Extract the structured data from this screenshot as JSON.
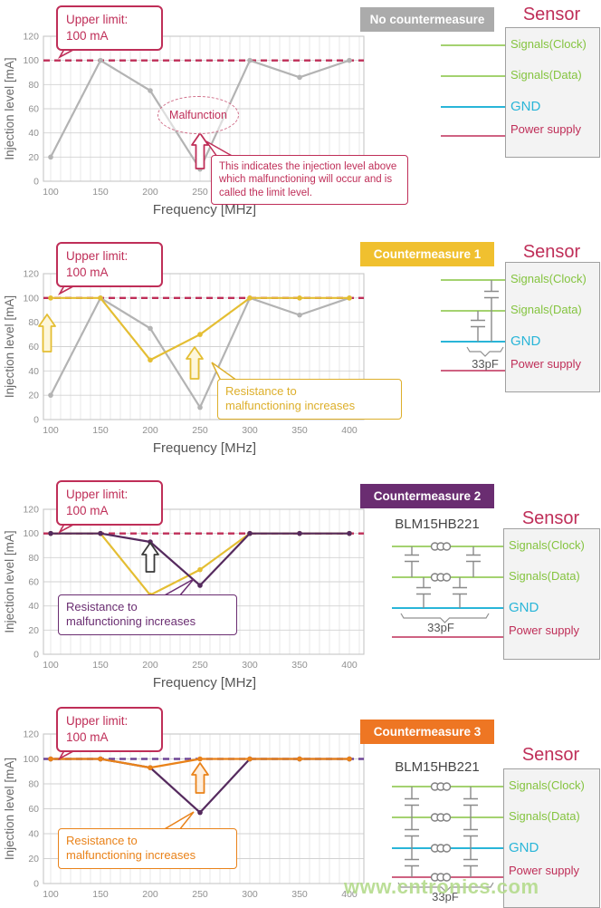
{
  "page": {
    "watermark": "www.cntronics.com"
  },
  "shared": {
    "upper_limit_line1": "Upper limit:",
    "upper_limit_line2": "100 mA",
    "sensor_title": "Sensor",
    "sensor_lines": [
      {
        "name": "signals-clock",
        "label": "Signals(Clock)",
        "color": "#85c440"
      },
      {
        "name": "signals-data",
        "label": "Signals(Data)",
        "color": "#85c440"
      },
      {
        "name": "gnd",
        "label": "GND",
        "color": "#29b5d8"
      },
      {
        "name": "power-supply",
        "label": "Power supply",
        "color": "#bf2e58"
      }
    ]
  },
  "sections": [
    {
      "badge": {
        "label": "No countermeasure",
        "color": "#ababab"
      },
      "note_color": "#bf2e58",
      "annotations": {
        "malfunction": "Malfunction",
        "note": "This indicates the injection level above which malfunctioning will occur and is called the limit level."
      },
      "circuit": {
        "variant": "plain"
      }
    },
    {
      "badge": {
        "label": "Countermeasure 1",
        "color": "#f0c02f"
      },
      "note_color": "#ddaf2b",
      "annotations": {
        "note": "Resistance to\nmalfunctioning increases"
      },
      "circuit": {
        "variant": "caps",
        "cap_label": "33pF"
      }
    },
    {
      "badge": {
        "label": "Countermeasure 2",
        "color": "#6a2d71"
      },
      "note_color": "#6a2d71",
      "annotations": {
        "note": "Resistance to\nmalfunctioning increases"
      },
      "circuit": {
        "variant": "beads2",
        "component_label": "BLM15HB221",
        "cap_label": "33pF"
      }
    },
    {
      "badge": {
        "label": "Countermeasure 3",
        "color": "#ee7623"
      },
      "note_color": "#e98219",
      "annotations": {
        "note": "Resistance to\nmalfunctioning increases"
      },
      "circuit": {
        "variant": "beads4",
        "component_label": "BLM15HB221",
        "cap_label": "33pF"
      }
    }
  ],
  "chart_data": [
    {
      "type": "line",
      "title": "No countermeasure",
      "x": [
        100,
        150,
        200,
        250,
        300,
        350,
        400
      ],
      "series": [
        {
          "name": "No countermeasure",
          "color": "#b3b3b3",
          "values": [
            20,
            100,
            75,
            10,
            100,
            86,
            100
          ]
        }
      ],
      "upper_limit": 100,
      "limit_color": "#bf2e58",
      "xlabel": "Frequency  [MHz]",
      "ylabel": "Injection level [mA]",
      "xlim": [
        100,
        400
      ],
      "ylim": [
        0,
        120
      ],
      "x_ticks": [
        100,
        150,
        200,
        250,
        300,
        350,
        400
      ],
      "y_ticks": [
        0,
        20,
        40,
        60,
        80,
        100,
        120
      ],
      "grid": true,
      "legend": "none"
    },
    {
      "type": "line",
      "title": "Countermeasure 1",
      "x": [
        100,
        150,
        200,
        250,
        300,
        350,
        400
      ],
      "series": [
        {
          "name": "No countermeasure",
          "color": "#b3b3b3",
          "values": [
            20,
            100,
            75,
            10,
            100,
            86,
            100
          ]
        },
        {
          "name": "Countermeasure 1",
          "color": "#e4be33",
          "values": [
            100,
            100,
            49,
            70,
            100,
            100,
            100
          ]
        }
      ],
      "upper_limit": 100,
      "limit_color": "#bf2e58",
      "xlabel": "Frequency  [MHz]",
      "ylabel": "Injection level [mA]",
      "xlim": [
        100,
        400
      ],
      "ylim": [
        0,
        120
      ],
      "x_ticks": [
        100,
        150,
        200,
        250,
        300,
        350,
        400
      ],
      "y_ticks": [
        0,
        20,
        40,
        60,
        80,
        100,
        120
      ],
      "grid": true,
      "legend": "none"
    },
    {
      "type": "line",
      "title": "Countermeasure 2",
      "x": [
        100,
        150,
        200,
        250,
        300,
        350,
        400
      ],
      "series": [
        {
          "name": "Countermeasure 1",
          "color": "#e4be33",
          "values": [
            100,
            100,
            49,
            70,
            100,
            100,
            100
          ]
        },
        {
          "name": "Countermeasure 2",
          "color": "#552a5e",
          "values": [
            100,
            100,
            93,
            57,
            100,
            100,
            100
          ]
        }
      ],
      "upper_limit": 100,
      "limit_color": "#bf2e58",
      "xlabel": "Frequency  [MHz]",
      "ylabel": "Injection level [mA]",
      "xlim": [
        100,
        400
      ],
      "ylim": [
        0,
        120
      ],
      "x_ticks": [
        100,
        150,
        200,
        250,
        300,
        350,
        400
      ],
      "y_ticks": [
        0,
        20,
        40,
        60,
        80,
        100,
        120
      ],
      "grid": true,
      "legend": "none"
    },
    {
      "type": "line",
      "title": "Countermeasure 3",
      "x": [
        100,
        150,
        200,
        250,
        300,
        350,
        400
      ],
      "series": [
        {
          "name": "Countermeasure 2",
          "color": "#552a5e",
          "values": [
            100,
            100,
            93,
            57,
            100,
            100,
            100
          ]
        },
        {
          "name": "Countermeasure 3",
          "color": "#e98219",
          "values": [
            100,
            100,
            93,
            100,
            100,
            100,
            100
          ]
        }
      ],
      "upper_limit": 100,
      "limit_color": "#6f4596",
      "xlabel": "",
      "ylabel": "Injection level [mA]",
      "xlim": [
        100,
        400
      ],
      "ylim": [
        0,
        120
      ],
      "x_ticks": [
        100,
        150,
        200,
        250,
        300,
        350,
        400
      ],
      "y_ticks": [
        0,
        20,
        40,
        60,
        80,
        100,
        120
      ],
      "grid": true,
      "legend": "none"
    }
  ]
}
